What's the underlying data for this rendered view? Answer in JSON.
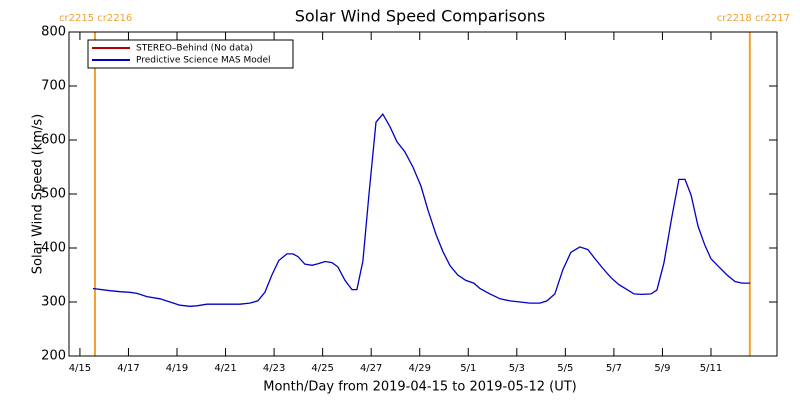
{
  "chart_data": {
    "type": "line",
    "title": "Solar Wind Speed Comparisons",
    "xlabel": "Month/Day from 2019-04-15 to 2019-05-12 (UT)",
    "ylabel": "Solar Wind Speed (km/s)",
    "xlim": [
      -0.45,
      28.72
    ],
    "xticks": [
      {
        "value": 0,
        "label": "4/15"
      },
      {
        "value": 2,
        "label": "4/17"
      },
      {
        "value": 4,
        "label": "4/19"
      },
      {
        "value": 6,
        "label": "4/21"
      },
      {
        "value": 8,
        "label": "4/23"
      },
      {
        "value": 10,
        "label": "4/25"
      },
      {
        "value": 12,
        "label": "4/27"
      },
      {
        "value": 14,
        "label": "4/29"
      },
      {
        "value": 16,
        "label": "5/1"
      },
      {
        "value": 18,
        "label": "5/3"
      },
      {
        "value": 20,
        "label": "5/5"
      },
      {
        "value": 22,
        "label": "5/7"
      },
      {
        "value": 24,
        "label": "5/9"
      },
      {
        "value": 26,
        "label": "5/11"
      }
    ],
    "ylim": [
      200,
      800
    ],
    "yticks": [
      200,
      300,
      400,
      500,
      600,
      700,
      800
    ],
    "annotations": [
      {
        "text": "cr2215 cr2216",
        "x": 0.62,
        "color": "#f0a030",
        "align": "left"
      },
      {
        "text": "cr2218 cr2217",
        "x": 27.6,
        "color": "#f0a030",
        "align": "right"
      }
    ],
    "legend": "upper left",
    "series": [
      {
        "name": "STEREO–Behind (No data)",
        "color": "#b00000",
        "x": [],
        "values": []
      },
      {
        "name": "Predictive Science MAS Model",
        "color": "#0000c8",
        "x": [
          0.54,
          1.24,
          1.65,
          2.06,
          2.35,
          2.76,
          3.3,
          3.71,
          4.12,
          4.53,
          4.82,
          5.23,
          5.97,
          6.59,
          7.0,
          7.33,
          7.62,
          7.91,
          8.2,
          8.53,
          8.78,
          8.98,
          9.27,
          9.56,
          9.81,
          10.1,
          10.38,
          10.63,
          10.92,
          11.21,
          11.41,
          11.66,
          11.91,
          12.2,
          12.48,
          12.77,
          13.06,
          13.39,
          13.72,
          14.05,
          14.34,
          14.67,
          14.96,
          15.25,
          15.57,
          15.9,
          16.23,
          16.48,
          16.89,
          17.31,
          17.72,
          18.13,
          18.54,
          18.95,
          19.24,
          19.57,
          19.9,
          20.23,
          20.6,
          20.93,
          21.26,
          21.55,
          21.88,
          22.21,
          22.54,
          22.83,
          23.15,
          23.53,
          23.77,
          24.06,
          24.39,
          24.68,
          24.93,
          25.18,
          25.47,
          25.75,
          26.0,
          26.33,
          26.66,
          26.99,
          27.28,
          27.61
        ],
        "values": [
          325,
          321,
          319,
          318,
          316,
          310,
          306,
          300,
          294,
          292,
          293,
          296,
          296,
          296,
          298,
          302,
          318,
          350,
          377,
          389,
          389,
          384,
          370,
          368,
          371,
          375,
          373,
          365,
          340,
          323,
          323,
          376,
          500,
          633,
          648,
          625,
          597,
          578,
          550,
          515,
          470,
          425,
          393,
          367,
          350,
          340,
          335,
          325,
          315,
          306,
          302,
          300,
          298,
          298,
          302,
          315,
          360,
          392,
          402,
          397,
          378,
          362,
          345,
          332,
          323,
          315,
          314,
          315,
          322,
          372,
          458,
          527,
          527,
          498,
          440,
          405,
          380,
          365,
          350,
          338,
          335,
          335
        ]
      }
    ]
  }
}
